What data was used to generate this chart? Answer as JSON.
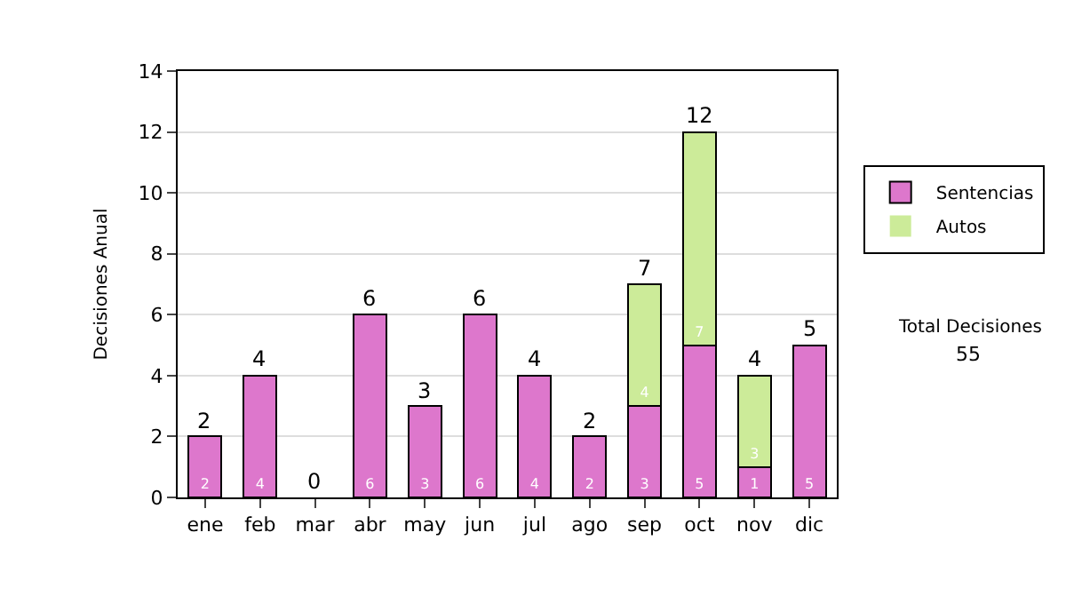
{
  "chart_data": {
    "type": "bar",
    "ylabel": "Decisiones Anual",
    "categories": [
      "ene",
      "feb",
      "mar",
      "abr",
      "may",
      "jun",
      "jul",
      "ago",
      "sep",
      "oct",
      "nov",
      "dic"
    ],
    "series": [
      {
        "name": "Sentencias",
        "color": "#dd77cc",
        "values": [
          2,
          4,
          0,
          6,
          3,
          6,
          4,
          2,
          3,
          5,
          1,
          5
        ],
        "value_labels": [
          "2",
          "4",
          null,
          "6",
          "3",
          "6",
          "4",
          "2",
          "3",
          "5",
          "1",
          "5"
        ]
      },
      {
        "name": "Autos",
        "color": "#cceb99",
        "values": [
          0,
          0,
          0,
          0,
          0,
          0,
          0,
          0,
          4,
          7,
          3,
          0
        ],
        "value_labels": [
          null,
          null,
          null,
          null,
          null,
          null,
          null,
          null,
          "4",
          "7",
          "3",
          null
        ]
      }
    ],
    "stacked": true,
    "totals": [
      "2",
      "4",
      "0",
      "6",
      "3",
      "6",
      "4",
      "2",
      "7",
      "12",
      "4",
      "5"
    ],
    "ylim": [
      0,
      14
    ],
    "yticks": [
      0,
      2,
      4,
      6,
      8,
      10,
      12,
      14
    ],
    "grid": "y",
    "legend": "right",
    "annotations": [
      "Total Decisiones",
      "55"
    ]
  }
}
